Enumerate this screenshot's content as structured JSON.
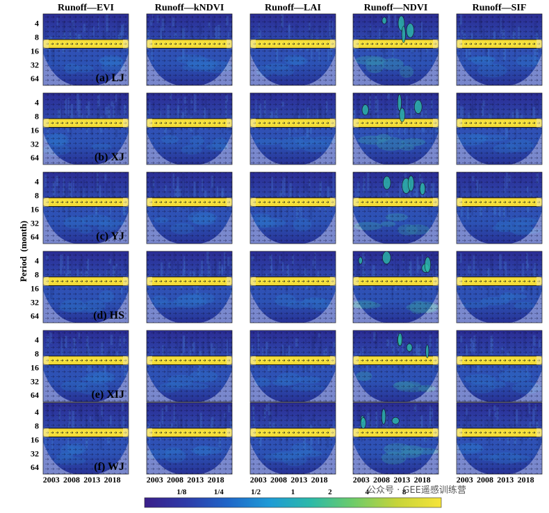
{
  "chart_data": {
    "type": "heatmap",
    "description_kind": "wavelet coherence grid",
    "columns": [
      "Runoff—EVI",
      "Runoff—kNDVI",
      "Runoff—LAI",
      "Runoff—NDVI",
      "Runoff—SIF"
    ],
    "rows": [
      "(a) LJ",
      "(b) XJ",
      "(c) YJ",
      "(d) HS",
      "(e) XIJ",
      "(f) WJ"
    ],
    "ylabel": "Period  (month)",
    "y_ticks": [
      "4",
      "8",
      "16",
      "32",
      "64"
    ],
    "y_tick_values": [
      4,
      8,
      16,
      32,
      64
    ],
    "x_ticks": [
      "2003",
      "2008",
      "2013",
      "2018"
    ],
    "x_tick_values": [
      2003,
      2008,
      2013,
      2018
    ],
    "xlim": [
      2001,
      2022
    ],
    "ylim": [
      2.5,
      90
    ],
    "y_scale": "log2",
    "dominant_band_period_range": [
      9,
      14
    ],
    "colorbar": {
      "ticks": [
        "1/8",
        "1/4",
        "1/2",
        "1",
        "2",
        "4",
        "8"
      ],
      "tick_values": [
        0.125,
        0.25,
        0.5,
        1,
        2,
        4,
        8
      ],
      "colors": [
        "#3a1f8a",
        "#2e3ba8",
        "#1f66c8",
        "#1e9ad6",
        "#2cb9a8",
        "#6ccb6a",
        "#c6d43a",
        "#f6e43a"
      ]
    }
  },
  "watermark": "公众号 · GEE遥感训练营"
}
